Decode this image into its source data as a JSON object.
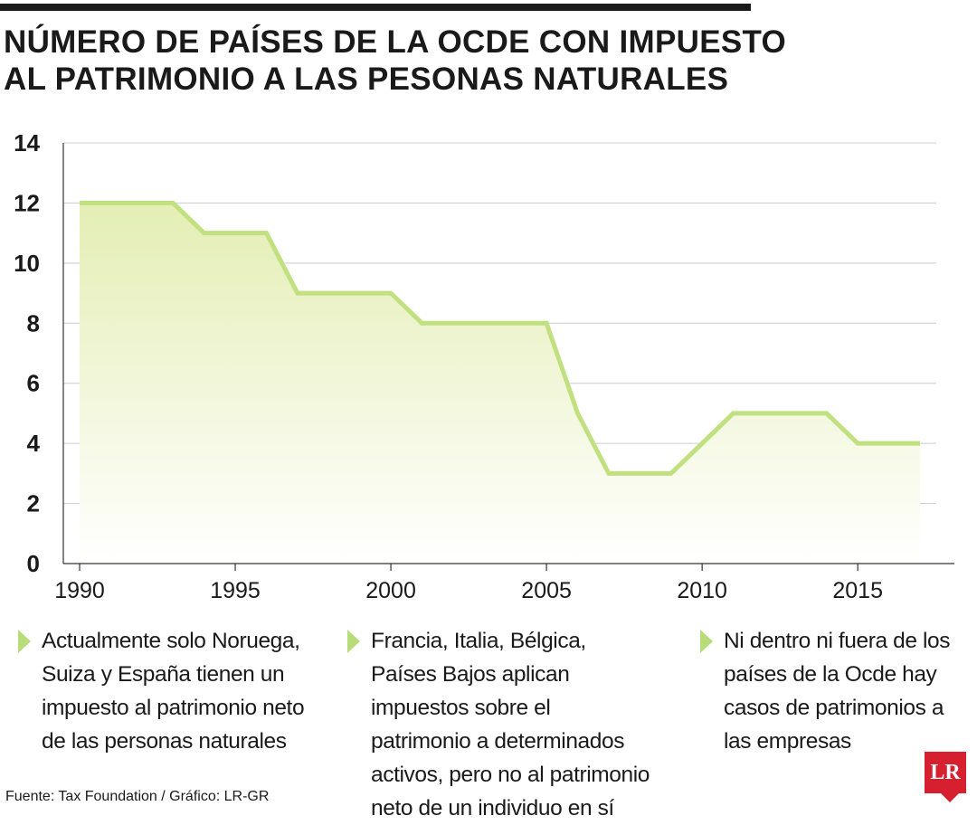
{
  "chart_data": {
    "type": "line",
    "title": "NÚMERO DE PAÍSES DE LA OCDE CON IMPUESTO AL PATRIMONIO A LAS PESONAS NATURALES",
    "x": [
      1990,
      1991,
      1992,
      1993,
      1994,
      1995,
      1996,
      1997,
      1998,
      1999,
      2000,
      2001,
      2002,
      2003,
      2004,
      2005,
      2006,
      2007,
      2008,
      2009,
      2010,
      2011,
      2012,
      2013,
      2014,
      2015,
      2016,
      2017
    ],
    "series": [
      {
        "values": [
          12,
          12,
          12,
          12,
          11,
          11,
          11,
          9,
          9,
          9,
          9,
          8,
          8,
          8,
          8,
          8,
          5,
          3,
          3,
          3,
          4,
          5,
          5,
          5,
          5,
          4,
          4,
          4
        ]
      }
    ],
    "xticks": [
      "1990",
      "1995",
      "2000",
      "2005",
      "2010",
      "2015"
    ],
    "yticks": [
      "0",
      "2",
      "4",
      "6",
      "8",
      "10",
      "12",
      "14"
    ],
    "xlim": [
      1990,
      2018
    ],
    "ylim": [
      0,
      14
    ],
    "grid": true,
    "colors": {
      "line": "#c1e07f",
      "fill_top": "#e4eeb4",
      "fill_bottom": "#ffffff",
      "grid": "#cccccc"
    }
  },
  "notes": [
    {
      "text": "Actualmente solo Noruega, Suiza y España tienen un impuesto al patrimonio neto de las personas naturales"
    },
    {
      "text": "Francia, Italia, Bélgica, Países Bajos aplican impuestos sobre el patrimonio a determinados activos, pero no al patrimonio neto de un individuo en sí"
    },
    {
      "text": "Ni dentro ni fuera de los países de la Ocde hay casos de patrimonios a las empresas"
    }
  ],
  "source": "Fuente: Tax Foundation / Gráfico: LR-GR",
  "logo": "LR",
  "colors": {
    "marker": "#b9dc7a",
    "logo": "#d62030"
  }
}
